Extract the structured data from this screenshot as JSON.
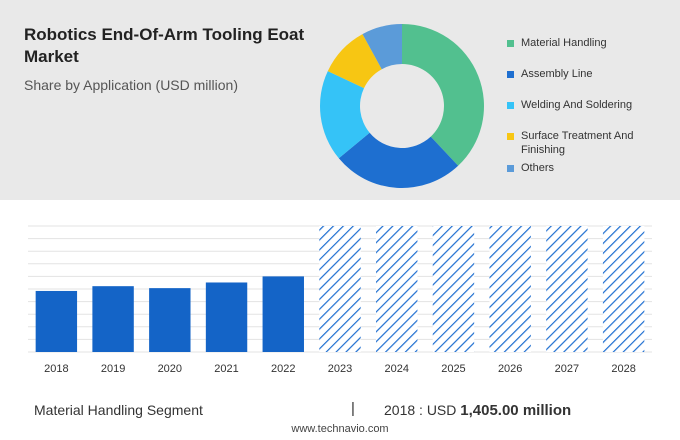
{
  "header": {
    "title": "Robotics End-Of-Arm Tooling Eoat Market",
    "subtitle": "Share by Application (USD million)"
  },
  "colors": {
    "bar": "#1464c7",
    "hatch": "#1f6fd1",
    "panel": "#e9e9e9"
  },
  "chart_data": [
    {
      "type": "pie",
      "variant": "donut",
      "title": "Share by Application (USD million)",
      "categories": [
        "Material Handling",
        "Assembly Line",
        "Welding And Soldering",
        "Surface Treatment And Finishing",
        "Others"
      ],
      "values": [
        38,
        26,
        18,
        10,
        8
      ],
      "colors": [
        "#52c08f",
        "#1e6fd0",
        "#35c3f7",
        "#f7c613",
        "#5b9bd9"
      ],
      "legend_position": "right"
    },
    {
      "type": "bar",
      "categories": [
        "2018",
        "2019",
        "2020",
        "2021",
        "2022",
        "2023",
        "2024",
        "2025",
        "2026",
        "2027",
        "2028"
      ],
      "values": [
        1405,
        1515,
        1470,
        1600,
        1740,
        null,
        null,
        null,
        null,
        null,
        null
      ],
      "forecast_categories": [
        "2023",
        "2024",
        "2025",
        "2026",
        "2027",
        "2028"
      ],
      "ylim": [
        0,
        2900
      ],
      "grid": true
    }
  ],
  "footer": {
    "segment_label": "Material Handling Segment",
    "divider": "|",
    "year_prefix": "2018 : USD",
    "value_text": "1,405.00 million",
    "source": "www.technavio.com"
  }
}
